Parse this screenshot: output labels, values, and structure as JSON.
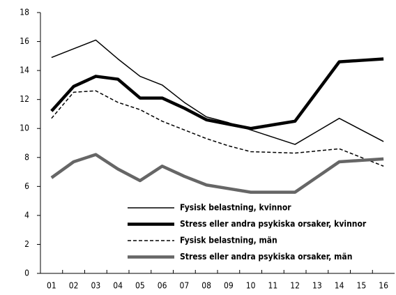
{
  "chart_data": {
    "type": "line",
    "categories": [
      "01",
      "02",
      "03",
      "04",
      "05",
      "06",
      "07",
      "08",
      "09",
      "10",
      "11",
      "12",
      "13",
      "14",
      "15",
      "16"
    ],
    "series": [
      {
        "name": "Fysisk belastning, kvinnor",
        "color": "#000000",
        "line_width": 1.5,
        "dashed": false,
        "values": [
          14.9,
          15.5,
          16.1,
          14.8,
          13.6,
          13.0,
          11.8,
          10.8,
          10.4,
          9.9,
          9.4,
          8.9,
          9.8,
          10.7,
          9.9,
          9.1
        ]
      },
      {
        "name": "Stress eller andra psykiska orsaker, kvinnor",
        "color": "#000000",
        "line_width": 4.5,
        "dashed": false,
        "values": [
          11.2,
          12.9,
          13.6,
          13.4,
          12.1,
          12.1,
          11.4,
          10.6,
          10.3,
          10.0,
          10.25,
          10.5,
          12.55,
          14.6,
          14.7,
          14.8
        ]
      },
      {
        "name": "Fysisk belastning, män",
        "color": "#000000",
        "line_width": 1.5,
        "dashed": true,
        "values": [
          10.7,
          12.5,
          12.6,
          11.8,
          11.3,
          10.5,
          9.9,
          9.3,
          8.8,
          8.4,
          8.35,
          8.3,
          8.45,
          8.6,
          8.0,
          7.4
        ]
      },
      {
        "name": "Stress eller andra psykiska orsaker, män",
        "color": "#666666",
        "line_width": 4.5,
        "dashed": false,
        "values": [
          6.6,
          7.7,
          8.2,
          7.2,
          6.4,
          7.4,
          6.7,
          6.1,
          5.85,
          5.6,
          5.6,
          5.6,
          6.65,
          7.7,
          7.8,
          7.9
        ]
      }
    ],
    "ylim": [
      0,
      18
    ],
    "yticks": [
      0,
      2,
      4,
      6,
      8,
      10,
      12,
      14,
      16,
      18
    ],
    "grid": false,
    "legend": "bottom"
  }
}
